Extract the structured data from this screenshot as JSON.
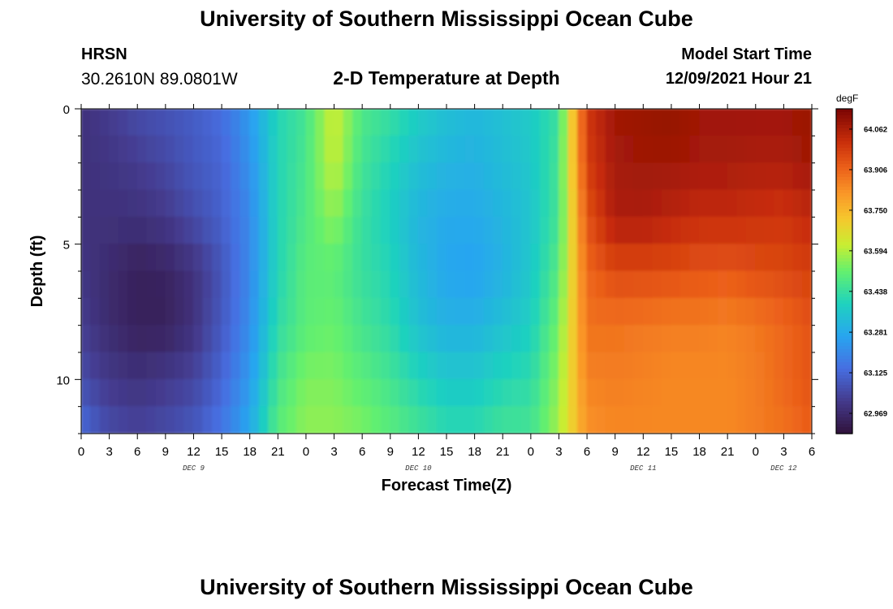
{
  "header": {
    "title": "University of Southern Mississippi Ocean Cube",
    "station": "HRSN",
    "coords": "30.2610N  89.0801W",
    "subtitle": "2-D Temperature at Depth",
    "model_start_label": "Model Start Time",
    "model_start_value": "12/09/2021 Hour 21"
  },
  "footer": {
    "title": "University of Southern Mississippi Ocean Cube"
  },
  "chart_data": {
    "type": "heatmap",
    "title": "2-D Temperature at Depth",
    "xlabel": "Forecast Time(Z)",
    "ylabel": "Depth (ft)",
    "x_tick_labels": [
      "0",
      "3",
      "6",
      "9",
      "12",
      "15",
      "18",
      "21",
      "0",
      "3",
      "6",
      "9",
      "12",
      "15",
      "18",
      "21",
      "0",
      "3",
      "6",
      "9",
      "12",
      "15",
      "18",
      "21",
      "0",
      "3",
      "6"
    ],
    "x_range_hours": [
      0,
      78
    ],
    "day_labels": [
      {
        "label": "DEC 9",
        "hour": 12
      },
      {
        "label": "DEC 10",
        "hour": 36
      },
      {
        "label": "DEC 11",
        "hour": 60
      },
      {
        "label": "DEC 12",
        "hour": 75
      }
    ],
    "y_ticks": [
      0,
      5,
      10
    ],
    "y_tick_labels": [
      "0",
      "5",
      "10"
    ],
    "y_range_ft": [
      0,
      12
    ],
    "y_inverted": true,
    "colorbar": {
      "unit": "degF",
      "min": 62.891,
      "max": 64.14,
      "tick_labels": [
        "64.062",
        "63.906",
        "63.750",
        "63.594",
        "63.438",
        "63.281",
        "63.125",
        "62.969"
      ],
      "tick_values": [
        64.062,
        63.906,
        63.75,
        63.594,
        63.438,
        63.281,
        63.125,
        62.969
      ]
    },
    "column_hours": [
      0,
      3,
      6,
      9,
      12,
      15,
      18,
      21,
      24,
      27,
      30,
      33,
      36,
      39,
      42,
      45,
      48,
      51,
      54,
      57,
      60,
      63,
      66,
      69,
      72,
      75,
      78
    ],
    "row_depths_ft": [
      0,
      2,
      4,
      6,
      8,
      10,
      12
    ],
    "values_degF": [
      [
        62.99,
        63.02,
        63.06,
        63.08,
        63.1,
        63.14,
        63.24,
        63.4,
        63.46,
        63.63,
        63.48,
        63.44,
        63.38,
        63.34,
        63.32,
        63.34,
        63.37,
        63.44,
        64.0,
        64.08,
        64.09,
        64.1,
        64.08,
        64.08,
        64.08,
        64.08,
        64.09
      ],
      [
        62.99,
        63.0,
        63.02,
        63.05,
        63.09,
        63.12,
        63.22,
        63.4,
        63.47,
        63.62,
        63.46,
        63.4,
        63.34,
        63.31,
        63.3,
        63.33,
        63.36,
        63.46,
        63.98,
        64.07,
        64.08,
        64.08,
        64.07,
        64.07,
        64.06,
        64.06,
        64.08
      ],
      [
        62.99,
        62.99,
        62.99,
        63.01,
        63.06,
        63.11,
        63.2,
        63.4,
        63.48,
        63.56,
        63.44,
        63.38,
        63.31,
        63.28,
        63.28,
        63.31,
        63.35,
        63.46,
        63.94,
        64.06,
        64.06,
        64.04,
        64.02,
        64.02,
        64.01,
        64.0,
        64.03
      ],
      [
        63.0,
        62.97,
        62.94,
        62.95,
        62.99,
        63.08,
        63.2,
        63.4,
        63.5,
        63.5,
        63.44,
        63.4,
        63.32,
        63.27,
        63.26,
        63.3,
        63.36,
        63.49,
        63.9,
        63.96,
        63.96,
        63.95,
        63.94,
        63.93,
        63.95,
        63.96,
        63.98
      ],
      [
        63.02,
        62.97,
        62.94,
        62.94,
        62.99,
        63.09,
        63.21,
        63.42,
        63.5,
        63.52,
        63.46,
        63.42,
        63.34,
        63.3,
        63.3,
        63.34,
        63.38,
        63.53,
        63.88,
        63.88,
        63.87,
        63.86,
        63.86,
        63.85,
        63.87,
        63.9,
        63.94
      ],
      [
        63.06,
        63.01,
        62.99,
        63.01,
        63.04,
        63.12,
        63.24,
        63.46,
        63.54,
        63.54,
        63.5,
        63.46,
        63.4,
        63.36,
        63.36,
        63.4,
        63.42,
        63.56,
        63.85,
        63.86,
        63.85,
        63.84,
        63.84,
        63.84,
        63.86,
        63.9,
        63.94
      ],
      [
        63.14,
        63.06,
        63.04,
        63.06,
        63.09,
        63.16,
        63.28,
        63.5,
        63.56,
        63.56,
        63.54,
        63.5,
        63.46,
        63.42,
        63.42,
        63.46,
        63.46,
        63.58,
        63.82,
        63.84,
        63.84,
        63.84,
        63.84,
        63.84,
        63.86,
        63.88,
        63.92
      ]
    ]
  }
}
